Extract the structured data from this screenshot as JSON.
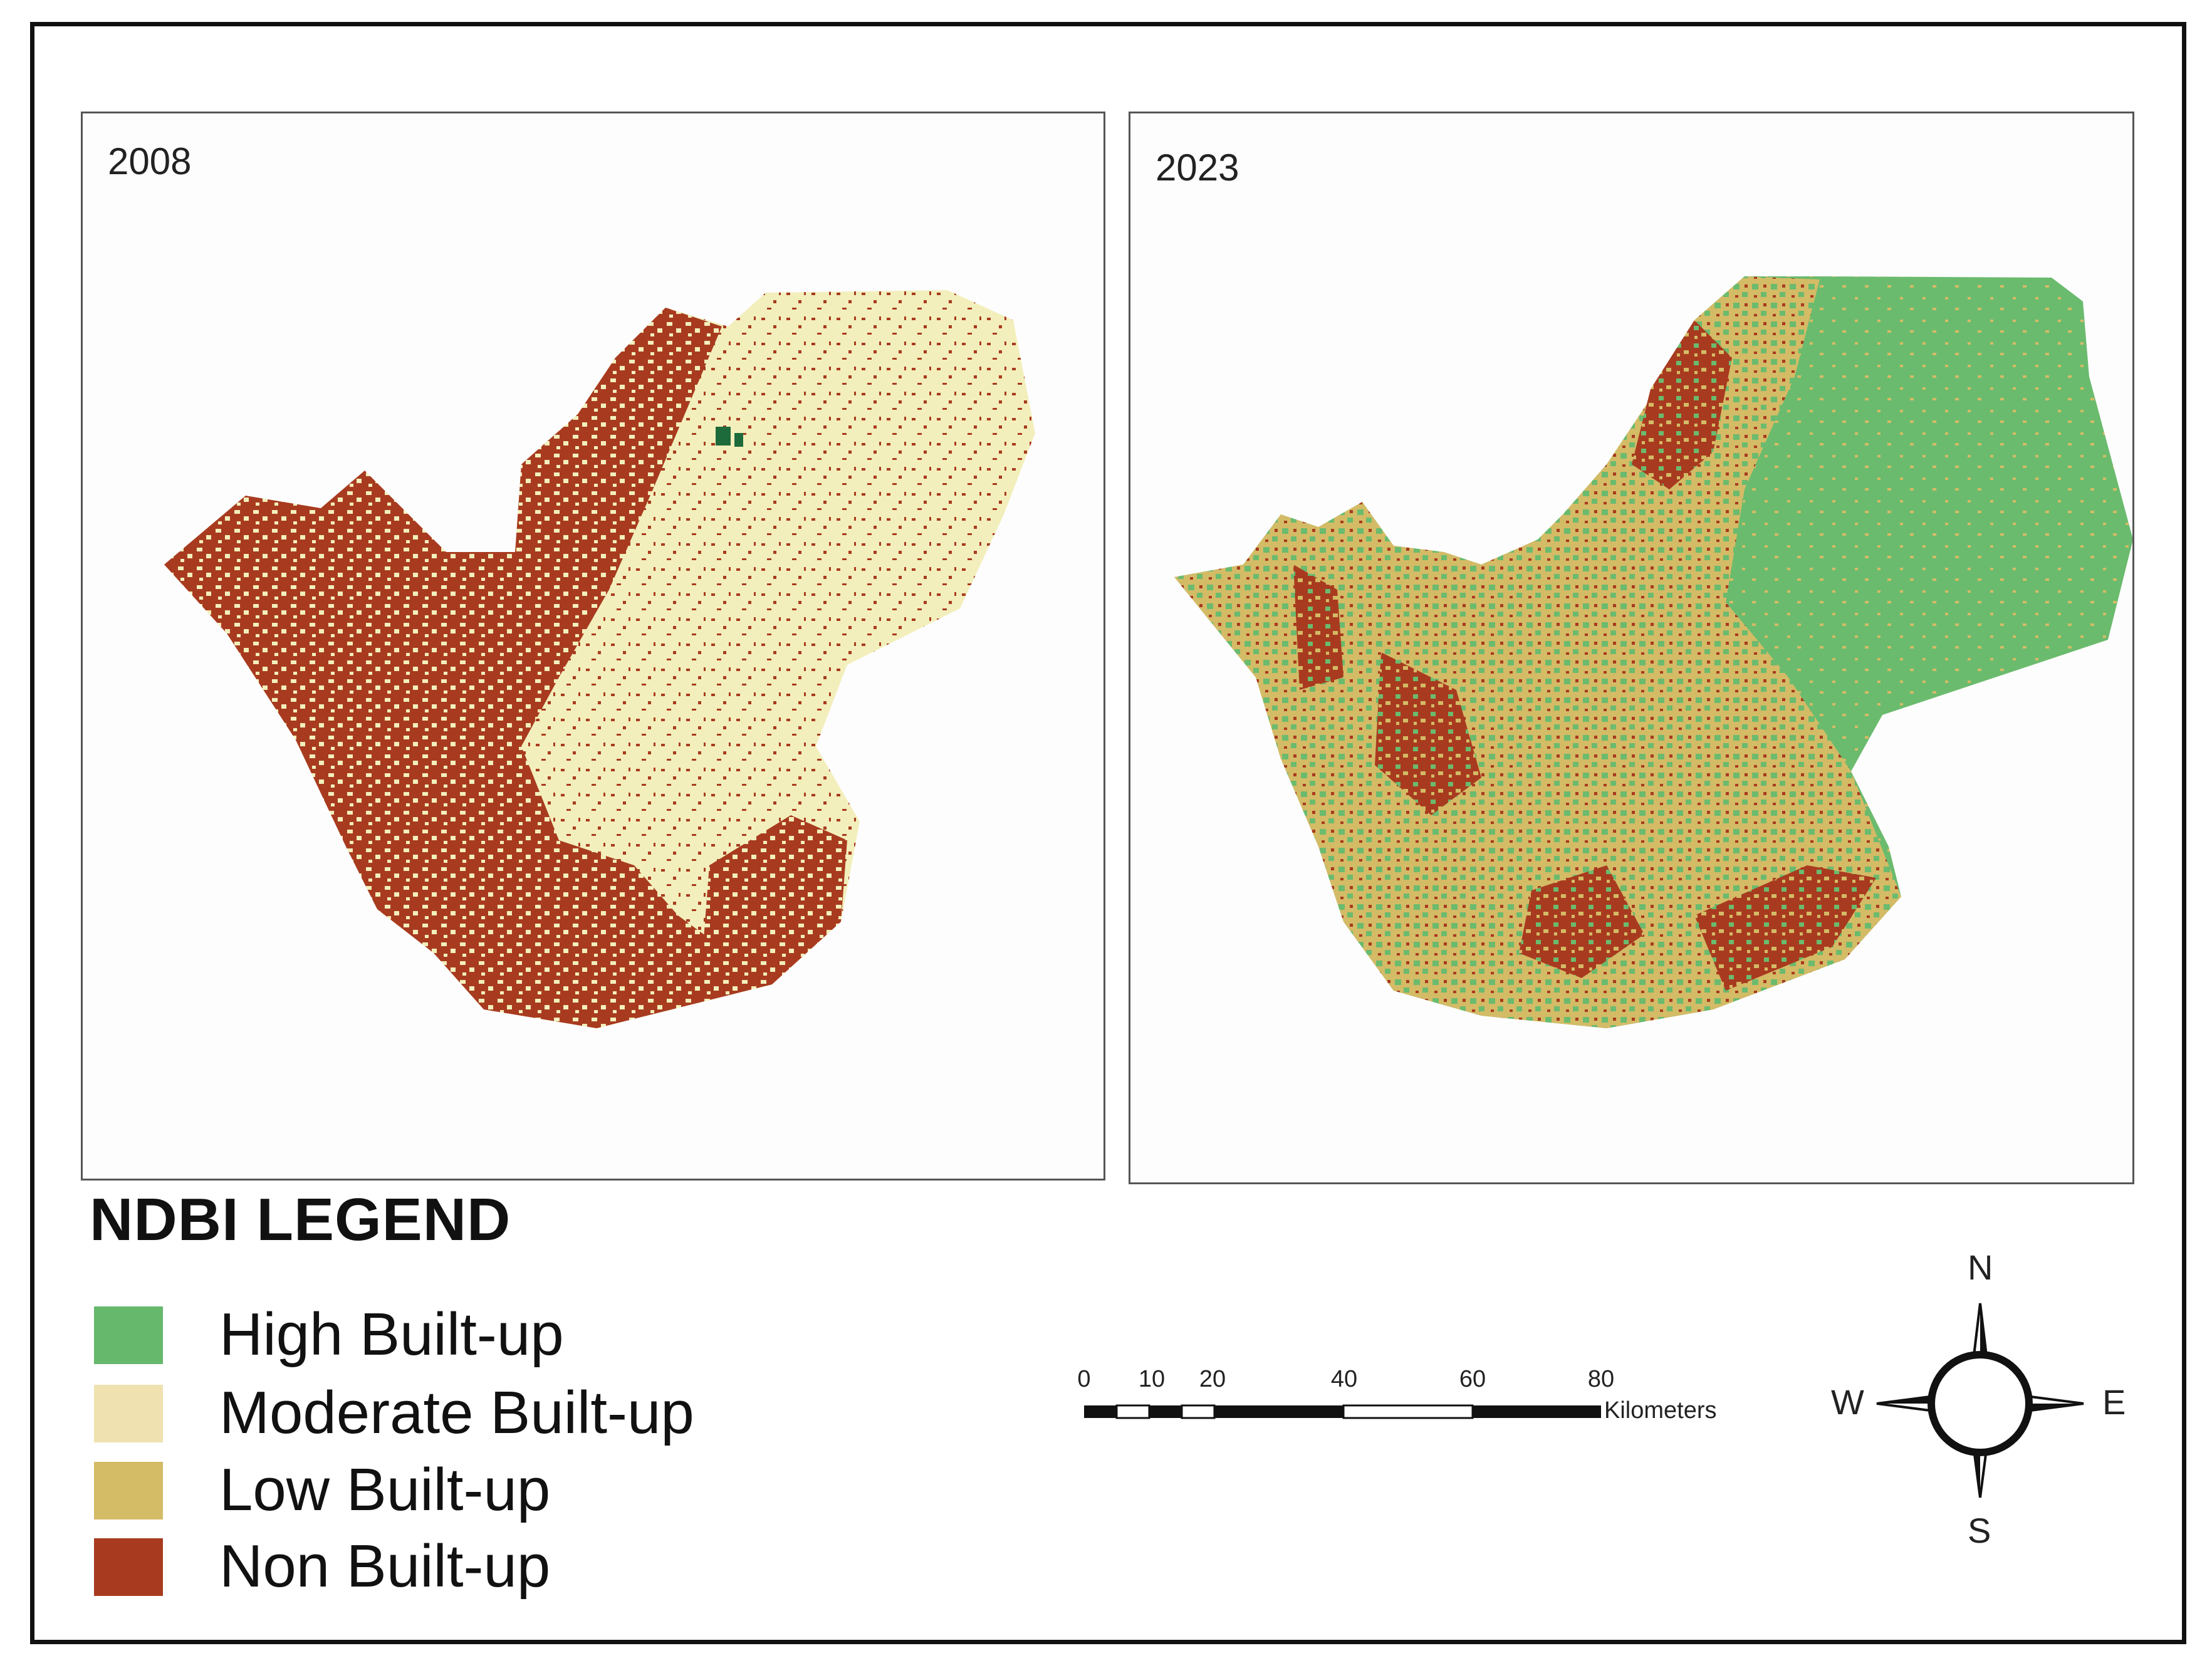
{
  "maps": [
    {
      "year": "2008"
    },
    {
      "year": "2023"
    }
  ],
  "legend": {
    "title": "NDBI LEGEND",
    "items": [
      {
        "label": "High Built-up",
        "color": "#65b86c"
      },
      {
        "label": "Moderate Built-up",
        "color": "#efe2b0"
      },
      {
        "label": "Low Built-up",
        "color": "#d4bb66"
      },
      {
        "label": "Non Built-up",
        "color": "#a83b1f"
      }
    ]
  },
  "scale_bar": {
    "ticks": [
      "0",
      "10",
      "20",
      "40",
      "60",
      "80"
    ],
    "unit": "Kilometers"
  },
  "compass": {
    "n": "N",
    "s": "S",
    "e": "E",
    "w": "W"
  }
}
